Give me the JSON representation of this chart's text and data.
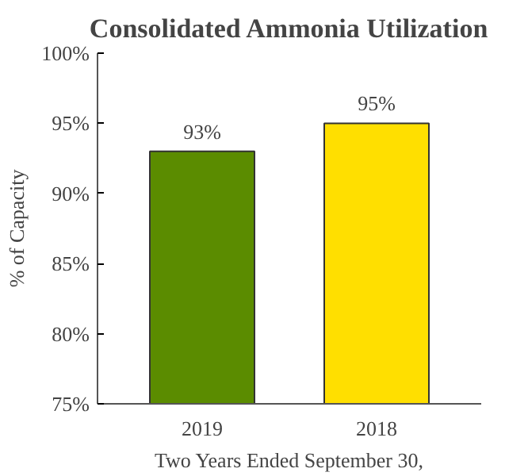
{
  "chart_data": {
    "type": "bar",
    "title": "Consolidated Ammonia Utilization",
    "xlabel": "Two Years Ended September 30,",
    "ylabel": "% of Capacity",
    "categories": [
      "2019",
      "2018"
    ],
    "values": [
      93,
      95
    ],
    "colors": [
      "#5b8c00",
      "#ffdf00"
    ],
    "value_labels": [
      "93%",
      "95%"
    ],
    "ylim": [
      75,
      100
    ],
    "yticks": [
      {
        "value": 75,
        "label": "75%"
      },
      {
        "value": 80,
        "label": "80%"
      },
      {
        "value": 85,
        "label": "85%"
      },
      {
        "value": 90,
        "label": "90%"
      },
      {
        "value": 95,
        "label": "95%"
      },
      {
        "value": 100,
        "label": "100%"
      }
    ],
    "grid": false
  }
}
